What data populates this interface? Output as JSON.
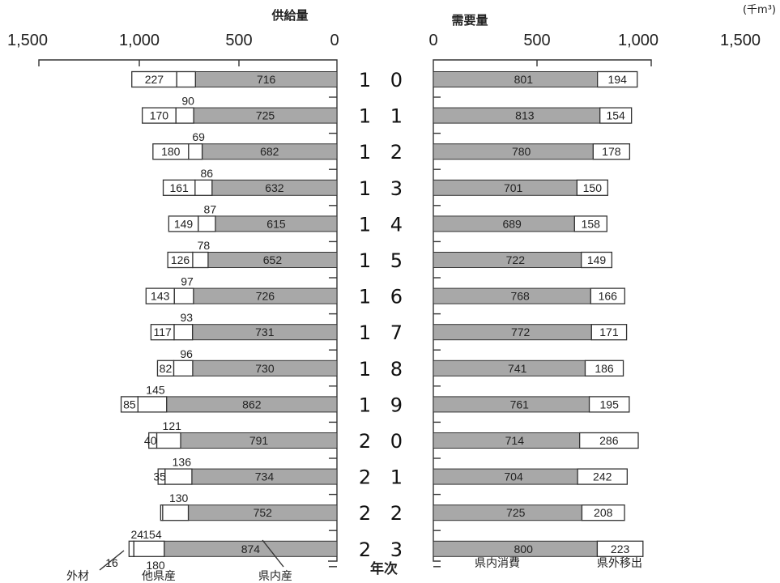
{
  "chart_data": {
    "type": "bar",
    "unit": "(千m³)",
    "category_label": "年次",
    "categories": [
      "10",
      "11",
      "12",
      "13",
      "14",
      "15",
      "16",
      "17",
      "18",
      "19",
      "20",
      "21",
      "22",
      "23"
    ],
    "supply": {
      "title": "供給量",
      "ticks": [
        "1,500",
        "1,000",
        "500",
        "0"
      ],
      "range": [
        0,
        1500
      ],
      "series": [
        {
          "name": "県内産",
          "values": [
            716,
            725,
            682,
            632,
            615,
            652,
            726,
            731,
            730,
            862,
            791,
            734,
            752,
            874
          ]
        },
        {
          "name": "他県産",
          "values": [
            null,
            90,
            69,
            86,
            87,
            78,
            97,
            93,
            96,
            145,
            121,
            136,
            130,
            154
          ]
        },
        {
          "name": "外材",
          "values": [
            227,
            170,
            180,
            161,
            149,
            126,
            143,
            117,
            82,
            85,
            40,
            35,
            null,
            24
          ]
        }
      ],
      "extra_labels": [
        "16",
        "180"
      ]
    },
    "demand": {
      "title": "需要量",
      "ticks": [
        "0",
        "500",
        "1,000",
        "1,500"
      ],
      "range": [
        0,
        1500
      ],
      "series": [
        {
          "name": "県内消費",
          "values": [
            801,
            813,
            780,
            701,
            689,
            722,
            768,
            772,
            741,
            761,
            714,
            704,
            725,
            800
          ]
        },
        {
          "name": "県外移出",
          "values": [
            194,
            154,
            178,
            150,
            158,
            149,
            166,
            171,
            186,
            195,
            286,
            242,
            208,
            223
          ]
        }
      ]
    }
  }
}
